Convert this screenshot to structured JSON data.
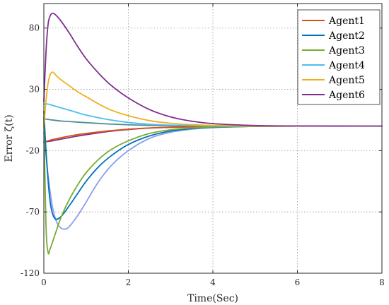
{
  "chart_data": {
    "type": "line",
    "title": "",
    "xlabel": "Time(Sec)",
    "ylabel": "Error ζ(t)",
    "xlim": [
      0,
      8
    ],
    "ylim": [
      -120,
      100
    ],
    "xticks": [
      "0",
      "2",
      "4",
      "6",
      "8"
    ],
    "yticks": [
      "80",
      "30",
      "-20",
      "-70",
      "-120"
    ],
    "grid": true,
    "legend_position": "top-right",
    "series": [
      {
        "name": "Agent1",
        "color": "#D95319",
        "x": [
          0,
          0.1,
          0.2,
          0.4,
          0.7,
          1.0,
          1.5,
          2.0,
          2.5,
          3.0,
          4.0,
          5.0,
          6.0,
          8.0
        ],
        "y": [
          -13,
          -12,
          -11,
          -9.5,
          -7.5,
          -6,
          -4,
          -2.5,
          -1.5,
          -1,
          -0.4,
          -0.1,
          0,
          0
        ]
      },
      {
        "name": "Agent2",
        "color": "#0072BD",
        "x": [
          0,
          0.07,
          0.15,
          0.25,
          0.4,
          0.6,
          0.8,
          1.0,
          1.3,
          1.6,
          2.0,
          2.5,
          3.0,
          3.5,
          4.0,
          5.0,
          6.0,
          8.0
        ],
        "y": [
          12,
          -30,
          -62,
          -75,
          -74,
          -65,
          -55,
          -45,
          -33,
          -24,
          -15,
          -8,
          -4,
          -2,
          -1,
          -0.2,
          0,
          0
        ]
      },
      {
        "name": "Agent3",
        "color": "#77AC30",
        "x": [
          0,
          0.05,
          0.1,
          0.15,
          0.25,
          0.4,
          0.6,
          0.8,
          1.0,
          1.3,
          1.6,
          2.0,
          2.5,
          3.0,
          3.5,
          4.0,
          5.0,
          6.0,
          8.0
        ],
        "y": [
          8,
          -80,
          -103,
          -100,
          -90,
          -75,
          -60,
          -48,
          -38,
          -27,
          -19,
          -12,
          -6,
          -3,
          -1.5,
          -0.7,
          -0.1,
          0,
          0
        ]
      },
      {
        "name": "Agent4",
        "color": "#4DBEEE",
        "x": [
          0,
          0.1,
          0.2,
          0.4,
          0.7,
          1.0,
          1.5,
          2.0,
          2.5,
          3.0,
          4.0,
          5.0,
          6.0,
          8.0
        ],
        "y": [
          18,
          18,
          17,
          15,
          12,
          9,
          5.5,
          3,
          1.5,
          0.8,
          0.2,
          0,
          0,
          0
        ]
      },
      {
        "name": "Agent5",
        "color": "#EDB120",
        "x": [
          0,
          0.05,
          0.1,
          0.15,
          0.2,
          0.25,
          0.3,
          0.4,
          0.6,
          0.8,
          1.0,
          1.3,
          1.6,
          2.0,
          2.5,
          3.0,
          3.5,
          4.0,
          5.0,
          6.0,
          8.0
        ],
        "y": [
          0,
          20,
          35,
          42,
          44,
          43,
          41,
          38,
          33,
          28,
          24,
          18,
          13,
          8.5,
          4.5,
          2.3,
          1.2,
          0.6,
          0.1,
          0,
          0
        ]
      },
      {
        "name": "Agent6",
        "color": "#7E2F8E",
        "x": [
          0,
          0.05,
          0.1,
          0.15,
          0.2,
          0.25,
          0.3,
          0.4,
          0.6,
          0.8,
          1.0,
          1.3,
          1.6,
          2.0,
          2.5,
          3.0,
          3.5,
          4.0,
          5.0,
          6.0,
          8.0
        ],
        "y": [
          20,
          60,
          83,
          90,
          92,
          91.5,
          90,
          86,
          76,
          65,
          55,
          43,
          33,
          23,
          13.5,
          7.5,
          4,
          2,
          0.5,
          0.1,
          0
        ]
      },
      {
        "name": "",
        "color": "#8C9EEB",
        "x": [
          0,
          0.1,
          0.2,
          0.3,
          0.4,
          0.5,
          0.6,
          0.8,
          1.0,
          1.3,
          1.6,
          2.0,
          2.5,
          3.0,
          3.5,
          4.0,
          5.0,
          6.0,
          8.0
        ],
        "y": [
          -5,
          -40,
          -65,
          -78,
          -83,
          -84,
          -82,
          -73,
          -62,
          -45,
          -32,
          -20,
          -10,
          -5,
          -2.5,
          -1.2,
          -0.2,
          0,
          0
        ]
      },
      {
        "name": "",
        "color": "#4C8F8F",
        "x": [
          0,
          0.1,
          0.2,
          0.4,
          0.7,
          1.0,
          1.5,
          2.0,
          2.5,
          3.0,
          4.0,
          5.0,
          6.0,
          8.0
        ],
        "y": [
          6,
          5.5,
          5,
          4.2,
          3.5,
          2.8,
          1.8,
          1.1,
          0.6,
          0.3,
          0.1,
          0,
          0,
          0
        ]
      },
      {
        "name": "",
        "color": "#7E2F8E",
        "x": [
          0,
          0.2,
          0.5,
          1.0,
          1.5,
          2.0,
          2.5,
          3.0,
          4.0,
          5.0,
          6.0,
          8.0
        ],
        "y": [
          -13,
          -12,
          -10,
          -7,
          -4.5,
          -2.8,
          -1.6,
          -0.9,
          -0.3,
          -0.1,
          0,
          0
        ]
      }
    ]
  }
}
